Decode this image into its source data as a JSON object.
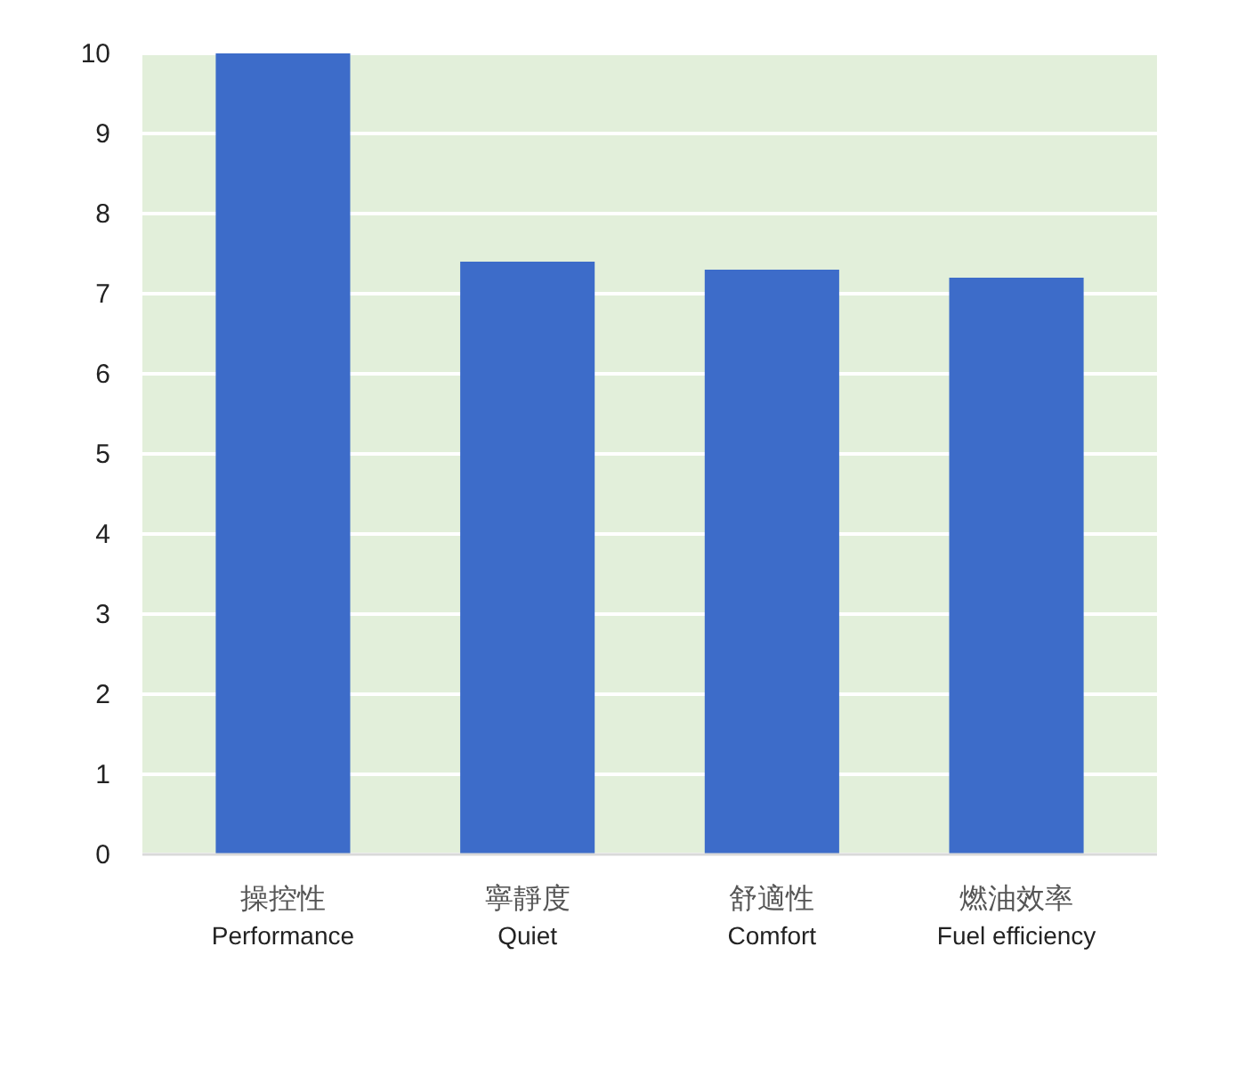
{
  "chart_data": {
    "type": "bar",
    "categories": [
      "操控性\nPerformance",
      "寧靜度\nQuiet",
      "舒適性\nComfort",
      "燃油效率\nFuel efficiency"
    ],
    "values": [
      10,
      7.4,
      7.3,
      7.2
    ],
    "color": "#3d6cc9",
    "ylim": [
      0,
      10
    ],
    "yticks": [
      0,
      1,
      2,
      3,
      4,
      5,
      6,
      7,
      8,
      9,
      10
    ],
    "grid": "y"
  }
}
